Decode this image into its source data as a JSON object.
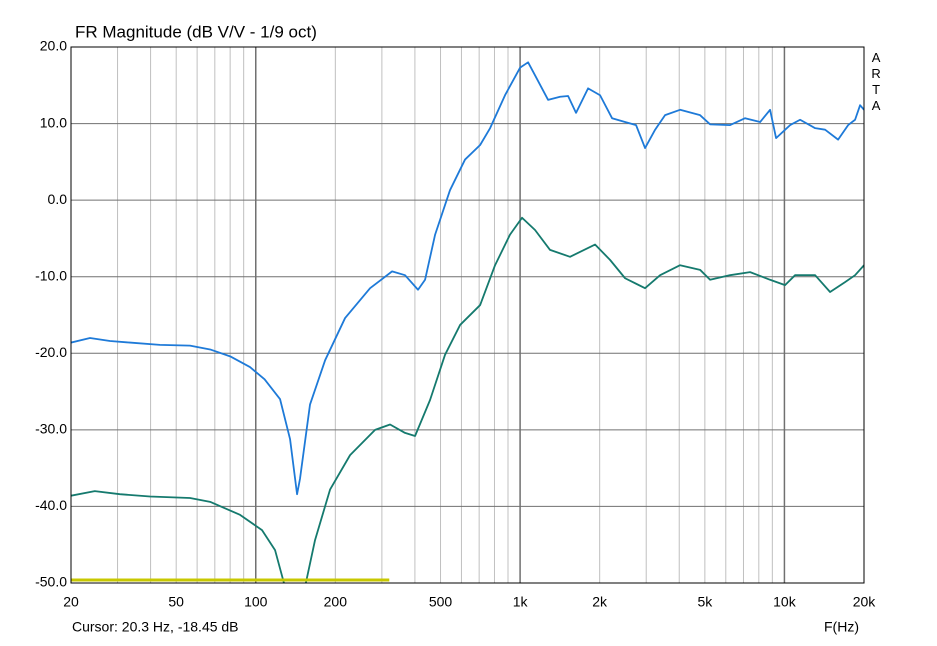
{
  "chart_data": {
    "type": "line",
    "title": "FR Magnitude (dB V/V - 1/9 oct)",
    "x_label": "F(Hz)",
    "cursor": "Cursor: 20.3 Hz, -18.45 dB",
    "brand": "ARTA",
    "xscale": "log",
    "grid": true,
    "xlim": [
      20,
      20000
    ],
    "ylim": [
      -50,
      20
    ],
    "xticks": [
      20,
      50,
      100,
      200,
      500,
      {
        "value": 1000,
        "label": "1k"
      },
      {
        "value": 2000,
        "label": "2k"
      },
      {
        "value": 5000,
        "label": "5k"
      },
      {
        "value": 10000,
        "label": "10k"
      },
      {
        "value": 20000,
        "label": "20k"
      }
    ],
    "xminorticks": [
      30,
      40,
      60,
      70,
      80,
      90,
      300,
      400,
      600,
      700,
      800,
      900,
      3000,
      4000,
      6000,
      7000,
      8000,
      9000
    ],
    "yticks": [
      {
        "value": 20,
        "label": "20.0"
      },
      {
        "value": 10,
        "label": "10.0"
      },
      {
        "value": 0,
        "label": "0.0"
      },
      {
        "value": -10,
        "label": "-10.0"
      },
      {
        "value": -20,
        "label": "-20.0"
      },
      {
        "value": -30,
        "label": "-30.0"
      },
      {
        "value": -40,
        "label": "-40.0"
      },
      {
        "value": -50,
        "label": "-50.0"
      }
    ],
    "series": [
      {
        "color": "#1e7ad8",
        "x": [
          20,
          23.6,
          28.1,
          33.4,
          43.4,
          56.4,
          67.2,
          80,
          95.1,
          108,
          123.6,
          134.8,
          143.3,
          147,
          160.4,
          183,
          217.7,
          270.7,
          327.9,
          367,
          411,
          437,
          477,
          543,
          619,
          706,
          770,
          877,
          1000,
          1072,
          1139,
          1276,
          1417,
          1519,
          1628,
          1808,
          2007,
          2228,
          2495,
          2746,
          2970,
          3242,
          3536,
          4029,
          4796,
          5233,
          6229,
          7099,
          8092,
          8825,
          9299,
          10508,
          11464,
          13066,
          14250,
          15961,
          17420,
          18505,
          19330,
          20000
        ],
        "values": [
          -18.6,
          -18.0,
          -18.4,
          -18.6,
          -18.9,
          -19.0,
          -19.5,
          -20.4,
          -21.8,
          -23.4,
          -26.0,
          -31.2,
          -38.4,
          -36.4,
          -26.7,
          -20.9,
          -15.4,
          -11.5,
          -9.3,
          -9.8,
          -11.7,
          -10.4,
          -4.5,
          1.3,
          5.3,
          7.2,
          9.4,
          13.7,
          17.3,
          18.0,
          16.3,
          13.1,
          13.5,
          13.6,
          11.4,
          14.6,
          13.7,
          10.7,
          10.2,
          9.8,
          6.8,
          9.2,
          11.1,
          11.8,
          11.1,
          9.9,
          9.8,
          10.7,
          10.2,
          11.8,
          8.1,
          9.8,
          10.5,
          9.4,
          9.2,
          7.9,
          9.8,
          10.5,
          12.4,
          11.8
        ]
      },
      {
        "color": "#157a6e",
        "x": [
          20,
          24.6,
          30.6,
          39.8,
          56.4,
          67.2,
          87.2,
          105.6,
          118.3,
          129,
          153.6,
          167.6,
          191,
          227.4,
          282.7,
          322.2,
          367,
          400.5,
          456.4,
          520,
          593,
          706,
          804,
          916,
          1017,
          1139,
          1298,
          1545,
          1921,
          2189,
          2496,
          2970,
          3386,
          4029,
          4796,
          5233,
          6229,
          7415,
          8825,
          10055,
          10972,
          13066,
          14882,
          16958,
          18505,
          20000
        ],
        "values": [
          -38.6,
          -38.0,
          -38.4,
          -38.7,
          -38.9,
          -39.4,
          -41.1,
          -43.1,
          -45.7,
          -50.5,
          -50.5,
          -44.4,
          -37.8,
          -33.3,
          -30.0,
          -29.3,
          -30.4,
          -30.8,
          -26.1,
          -20.2,
          -16.3,
          -13.7,
          -8.5,
          -4.5,
          -2.3,
          -3.9,
          -6.5,
          -7.4,
          -5.8,
          -7.8,
          -10.2,
          -11.5,
          -9.8,
          -8.5,
          -9.1,
          -10.4,
          -9.8,
          -9.4,
          -10.4,
          -11.1,
          -9.8,
          -9.8,
          -12.0,
          -10.7,
          -9.8,
          -8.5
        ]
      },
      {
        "color": "#c8c800",
        "x": [
          20,
          320
        ],
        "values": [
          -49.6,
          -49.6
        ]
      }
    ]
  }
}
